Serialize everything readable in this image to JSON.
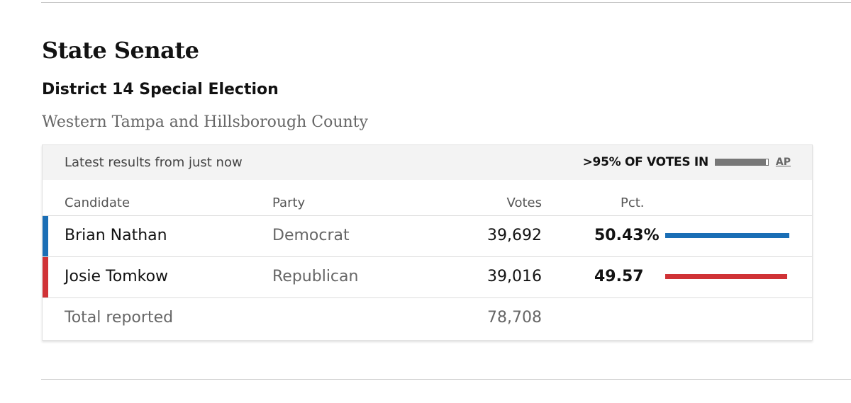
{
  "race": {
    "title": "State Senate",
    "subtitle": "District 14 Special Election",
    "location": "Western Tampa and Hillsborough County"
  },
  "header": {
    "updated": "Latest results from just now",
    "reporting": ">95% OF VOTES IN",
    "reporting_fraction": 0.96,
    "source": "AP"
  },
  "columns": {
    "candidate": "Candidate",
    "party": "Party",
    "votes": "Votes",
    "pct": "Pct."
  },
  "candidates": [
    {
      "name": "Brian Nathan",
      "party": "Democrat",
      "votes": "39,692",
      "pct": "50.43%",
      "pct_value": 50.43,
      "color": "#1a6eb5"
    },
    {
      "name": "Josie Tomkow",
      "party": "Republican",
      "votes": "39,016",
      "pct": "49.57",
      "pct_value": 49.57,
      "color": "#d03236"
    }
  ],
  "total": {
    "label": "Total reported",
    "votes": "78,708"
  }
}
